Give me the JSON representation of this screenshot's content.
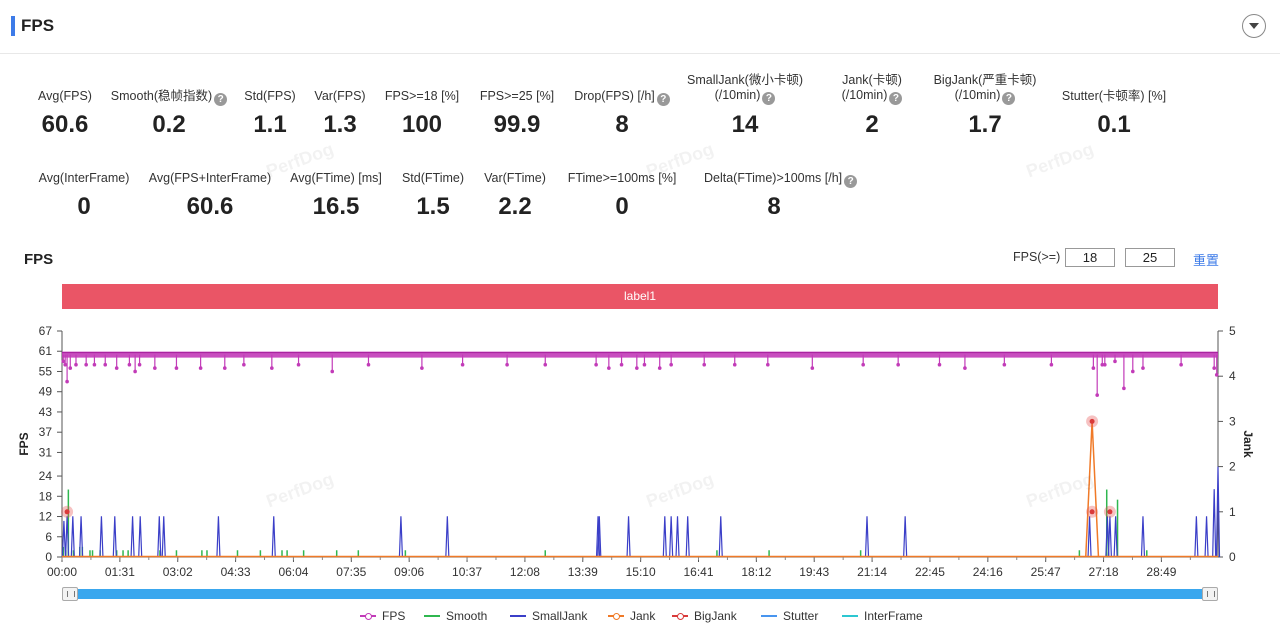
{
  "header": {
    "title": "FPS"
  },
  "metrics_row1": [
    {
      "label": "Avg(FPS)",
      "value": "60.6",
      "help": false
    },
    {
      "label": "Smooth(稳帧指数)",
      "value": "0.2",
      "help": true
    },
    {
      "label": "Std(FPS)",
      "value": "1.1",
      "help": false
    },
    {
      "label": "Var(FPS)",
      "value": "1.3",
      "help": false
    },
    {
      "label": "FPS>=18 [%]",
      "value": "100",
      "help": false
    },
    {
      "label": "FPS>=25 [%]",
      "value": "99.9",
      "help": false
    },
    {
      "label": "Drop(FPS) [/h]",
      "value": "8",
      "help": true
    },
    {
      "label": "SmallJank(微小卡顿)",
      "label2": "(/10min)",
      "value": "14",
      "help": true
    },
    {
      "label": "Jank(卡顿)",
      "label2": "(/10min)",
      "value": "2",
      "help": true
    },
    {
      "label": "BigJank(严重卡顿)",
      "label2": "(/10min)",
      "value": "1.7",
      "help": true
    },
    {
      "label": "Stutter(卡顿率) [%]",
      "value": "0.1",
      "help": false
    }
  ],
  "metrics_row2": [
    {
      "label": "Avg(InterFrame)",
      "value": "0",
      "help": false
    },
    {
      "label": "Avg(FPS+InterFrame)",
      "value": "60.6",
      "help": false
    },
    {
      "label": "Avg(FTime) [ms]",
      "value": "16.5",
      "help": false
    },
    {
      "label": "Std(FTime)",
      "value": "1.5",
      "help": false
    },
    {
      "label": "Var(FTime)",
      "value": "2.2",
      "help": false
    },
    {
      "label": "FTime>=100ms [%]",
      "value": "0",
      "help": false
    },
    {
      "label": "Delta(FTime)>100ms [/h]",
      "value": "8",
      "help": true
    }
  ],
  "chart_section": {
    "title": "FPS",
    "filter_label": "FPS(>=)",
    "filter_values": [
      "18",
      "25"
    ],
    "reset_label": "重置",
    "label_band": "label1",
    "watermark": "PerfDog"
  },
  "chart_data": {
    "type": "line",
    "ylabel": "FPS",
    "y2label": "Jank",
    "y_ticks": [
      0,
      6,
      12,
      18,
      24,
      31,
      37,
      43,
      49,
      55,
      61,
      67
    ],
    "ylim": [
      0,
      67
    ],
    "y2_ticks": [
      0,
      1,
      2,
      3,
      4,
      5
    ],
    "y2lim": [
      0,
      5
    ],
    "x_ticks": [
      "00:00",
      "01:31",
      "03:02",
      "04:33",
      "06:04",
      "07:35",
      "09:06",
      "10:37",
      "12:08",
      "13:39",
      "15:10",
      "16:41",
      "18:12",
      "19:43",
      "21:14",
      "22:45",
      "24:16",
      "25:47",
      "27:18",
      "28:49"
    ],
    "x_tick_step_s": 91,
    "x_max_s": 1818,
    "fps_base": 60,
    "fps_dips": [
      [
        2,
        58
      ],
      [
        5,
        57
      ],
      [
        8,
        52
      ],
      [
        13,
        56
      ],
      [
        22,
        57
      ],
      [
        38,
        57
      ],
      [
        51,
        57
      ],
      [
        68,
        57
      ],
      [
        86,
        56
      ],
      [
        106,
        57
      ],
      [
        115,
        55
      ],
      [
        122,
        57
      ],
      [
        146,
        56
      ],
      [
        180,
        56
      ],
      [
        218,
        56
      ],
      [
        256,
        56
      ],
      [
        286,
        57
      ],
      [
        330,
        56
      ],
      [
        372,
        57
      ],
      [
        425,
        55
      ],
      [
        482,
        57
      ],
      [
        566,
        56
      ],
      [
        630,
        57
      ],
      [
        700,
        57
      ],
      [
        760,
        57
      ],
      [
        840,
        57
      ],
      [
        860,
        56
      ],
      [
        880,
        57
      ],
      [
        904,
        56
      ],
      [
        916,
        57
      ],
      [
        940,
        56
      ],
      [
        958,
        57
      ],
      [
        1010,
        57
      ],
      [
        1058,
        57
      ],
      [
        1110,
        57
      ],
      [
        1180,
        56
      ],
      [
        1260,
        57
      ],
      [
        1315,
        57
      ],
      [
        1380,
        57
      ],
      [
        1420,
        56
      ],
      [
        1482,
        57
      ],
      [
        1556,
        57
      ],
      [
        1622,
        56
      ],
      [
        1628,
        48
      ],
      [
        1636,
        57
      ],
      [
        1640,
        57
      ],
      [
        1656,
        58
      ],
      [
        1670,
        50
      ],
      [
        1684,
        55
      ],
      [
        1700,
        56
      ],
      [
        1760,
        57
      ],
      [
        1812,
        56
      ],
      [
        1816,
        54
      ]
    ],
    "smalljank": [
      [
        3,
        0.8
      ],
      [
        8,
        0.9
      ],
      [
        17,
        0.9
      ],
      [
        30,
        0.9
      ],
      [
        62,
        0.9
      ],
      [
        83,
        0.9
      ],
      [
        111,
        0.9
      ],
      [
        123,
        0.9
      ],
      [
        153,
        0.9
      ],
      [
        160,
        0.9
      ],
      [
        246,
        0.9
      ],
      [
        333,
        0.9
      ],
      [
        533,
        0.9
      ],
      [
        606,
        0.9
      ],
      [
        843,
        0.9
      ],
      [
        845,
        0.9
      ],
      [
        891,
        0.9
      ],
      [
        948,
        0.9
      ],
      [
        958,
        0.9
      ],
      [
        968,
        0.9
      ],
      [
        984,
        0.9
      ],
      [
        1036,
        0.9
      ],
      [
        1266,
        0.9
      ],
      [
        1326,
        0.9
      ],
      [
        1616,
        0.9
      ],
      [
        1644,
        0.9
      ],
      [
        1648,
        0.9
      ],
      [
        1657,
        0.9
      ],
      [
        1700,
        0.9
      ],
      [
        1784,
        0.9
      ],
      [
        1800,
        0.9
      ],
      [
        1812,
        1.5
      ],
      [
        1818,
        2.0
      ]
    ],
    "smooth": [
      [
        2,
        3
      ],
      [
        6,
        2
      ],
      [
        10,
        20
      ],
      [
        18,
        2
      ],
      [
        28,
        3
      ],
      [
        32,
        3
      ],
      [
        44,
        2
      ],
      [
        48,
        2
      ],
      [
        60,
        2
      ],
      [
        86,
        2
      ],
      [
        96,
        2
      ],
      [
        104,
        2
      ],
      [
        154,
        2
      ],
      [
        180,
        2
      ],
      [
        220,
        2
      ],
      [
        228,
        2
      ],
      [
        276,
        2
      ],
      [
        312,
        2
      ],
      [
        346,
        2
      ],
      [
        354,
        2
      ],
      [
        380,
        2
      ],
      [
        432,
        2
      ],
      [
        466,
        2
      ],
      [
        540,
        2
      ],
      [
        760,
        2
      ],
      [
        1030,
        2
      ],
      [
        1112,
        2
      ],
      [
        1256,
        2
      ],
      [
        1600,
        2
      ],
      [
        1643,
        20
      ],
      [
        1660,
        17
      ],
      [
        1706,
        2
      ]
    ],
    "bigjank_points": [
      [
        8,
        1
      ],
      [
        1620,
        3
      ],
      [
        1620,
        1
      ],
      [
        1648,
        1
      ]
    ],
    "jank_spike": [
      [
        1610,
        0
      ],
      [
        1620,
        3
      ],
      [
        1630,
        0
      ]
    ]
  },
  "legend": [
    {
      "name": "FPS",
      "color": "#c23bb8",
      "marker": true
    },
    {
      "name": "Smooth",
      "color": "#2fb74f",
      "marker": false
    },
    {
      "name": "SmallJank",
      "color": "#3b3fc8",
      "marker": false
    },
    {
      "name": "Jank",
      "color": "#f07a28",
      "marker": true
    },
    {
      "name": "BigJank",
      "color": "#d93a3a",
      "marker": true
    },
    {
      "name": "Stutter",
      "color": "#4895ef",
      "marker": false
    },
    {
      "name": "InterFrame",
      "color": "#2cc7d1",
      "marker": false
    }
  ]
}
